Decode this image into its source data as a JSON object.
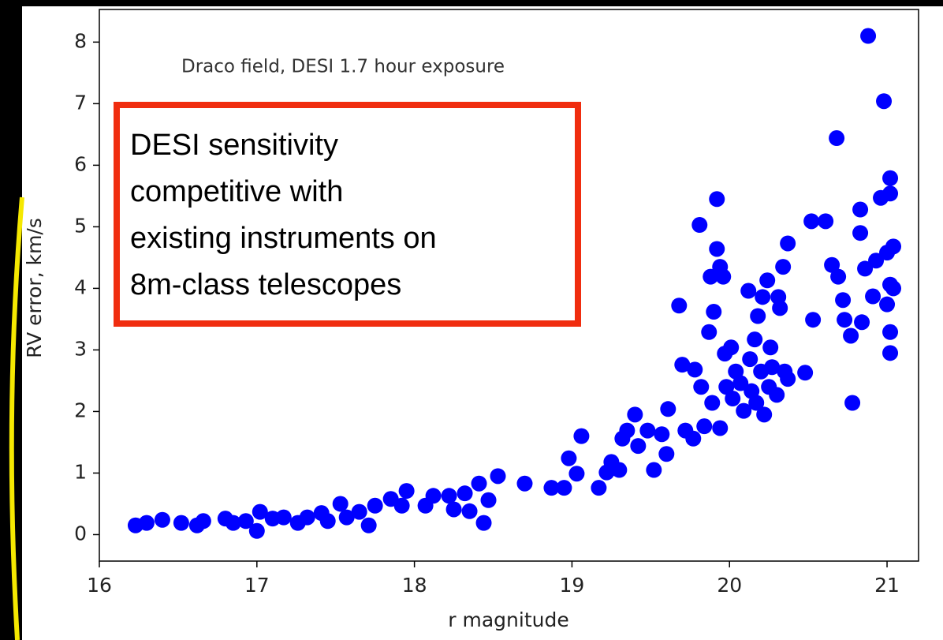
{
  "chart_data": {
    "type": "scatter",
    "annotation": "Draco field, DESI 1.7 hour exposure",
    "callout": [
      "DESI sensitivity",
      "competitive with",
      "existing instruments on",
      "8m-class telescopes"
    ],
    "xlabel": "r magnitude",
    "ylabel": "RV error, km/s",
    "color": "#0000ff",
    "x": [
      16.23,
      16.3,
      16.4,
      16.52,
      16.62,
      16.66,
      16.8,
      16.85,
      16.93,
      17.0,
      17.02,
      17.1,
      17.17,
      17.26,
      17.32,
      17.41,
      17.45,
      17.53,
      17.57,
      17.65,
      17.71,
      17.75,
      17.85,
      17.92,
      17.95,
      18.07,
      18.12,
      18.22,
      18.25,
      18.32,
      18.35,
      18.41,
      18.44,
      18.47,
      18.53,
      18.7,
      18.87,
      18.95,
      18.98,
      19.03,
      19.06,
      19.17,
      19.22,
      19.25,
      19.3,
      19.32,
      19.35,
      19.42,
      19.4,
      19.48,
      19.52,
      19.57,
      19.6,
      19.61,
      19.68,
      19.72,
      19.7,
      19.77,
      19.78,
      19.81,
      19.82,
      19.84,
      19.87,
      19.88,
      19.89,
      19.9,
      19.92,
      19.92,
      19.94,
      19.94,
      19.96,
      19.97,
      19.98,
      20.01,
      20.02,
      20.04,
      20.07,
      20.09,
      20.12,
      20.13,
      20.14,
      20.16,
      20.17,
      20.18,
      20.2,
      20.21,
      20.22,
      20.24,
      20.25,
      20.26,
      20.27,
      20.3,
      20.31,
      20.32,
      20.34,
      20.35,
      20.37,
      20.37,
      20.48,
      20.53,
      20.52,
      20.61,
      20.65,
      20.68,
      20.69,
      20.72,
      20.73,
      20.77,
      20.78,
      20.83,
      20.83,
      20.84,
      20.86,
      20.88,
      20.91,
      20.93,
      20.96,
      20.98,
      21.0,
      21.0,
      21.02,
      21.02,
      21.02,
      21.02,
      21.02,
      21.04,
      21.04
    ],
    "values": [
      0.15,
      0.19,
      0.24,
      0.19,
      0.15,
      0.22,
      0.26,
      0.19,
      0.22,
      0.06,
      0.37,
      0.26,
      0.28,
      0.19,
      0.28,
      0.35,
      0.22,
      0.5,
      0.28,
      0.37,
      0.15,
      0.47,
      0.58,
      0.47,
      0.71,
      0.47,
      0.63,
      0.63,
      0.41,
      0.67,
      0.38,
      0.83,
      0.19,
      0.56,
      0.95,
      0.83,
      0.76,
      0.76,
      1.24,
      0.99,
      1.6,
      0.76,
      1.01,
      1.18,
      1.05,
      1.56,
      1.69,
      1.44,
      1.95,
      1.69,
      1.05,
      1.63,
      1.31,
      2.04,
      3.72,
      1.69,
      2.76,
      1.56,
      2.68,
      5.03,
      2.4,
      1.76,
      3.29,
      4.19,
      2.14,
      3.62,
      5.45,
      4.64,
      4.35,
      1.73,
      4.19,
      2.94,
      2.4,
      3.04,
      2.21,
      2.65,
      2.46,
      2.01,
      3.96,
      2.85,
      2.33,
      3.17,
      2.14,
      3.55,
      2.65,
      3.86,
      1.95,
      4.13,
      2.4,
      3.04,
      2.72,
      2.27,
      3.86,
      3.68,
      4.35,
      2.65,
      4.73,
      2.53,
      2.63,
      3.49,
      5.09,
      5.09,
      4.38,
      6.44,
      4.19,
      3.81,
      3.49,
      3.23,
      2.14,
      5.28,
      4.9,
      3.45,
      4.32,
      8.1,
      3.87,
      4.45,
      5.47,
      7.04,
      4.58,
      3.74,
      4.06,
      5.79,
      5.54,
      3.29,
      2.95,
      4.68,
      4.0
    ],
    "xlim": [
      16,
      21.2
    ],
    "ylim": [
      -0.43,
      8.53
    ],
    "xticks": [
      16,
      17,
      18,
      19,
      20,
      21
    ],
    "yticks": [
      0,
      1,
      2,
      3,
      4,
      5,
      6,
      7,
      8
    ]
  }
}
